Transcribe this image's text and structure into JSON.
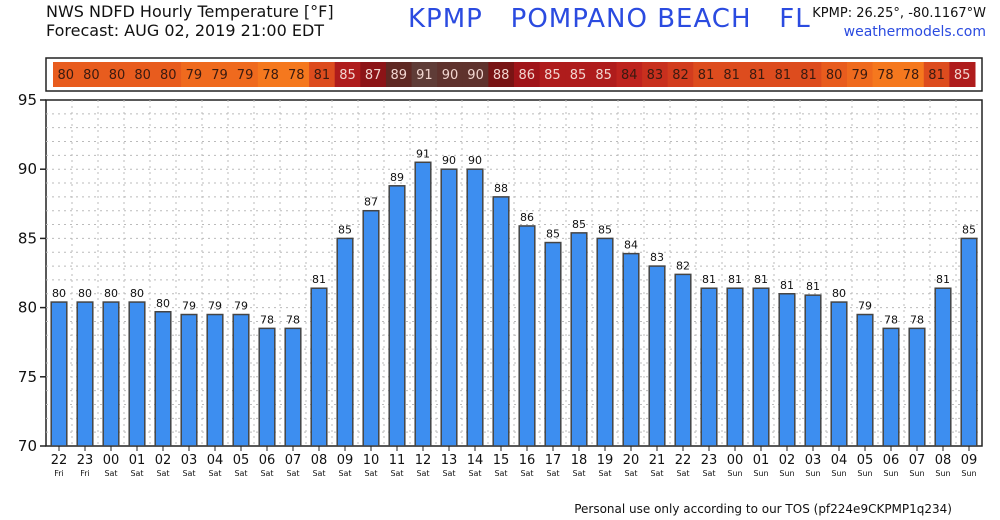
{
  "header": {
    "title_line1": "NWS NDFD Hourly Temperature [°F]",
    "title_line2": "Forecast: AUG 02, 2019 21:00 EDT",
    "station": "KPMP   POMPANO BEACH   FL",
    "coords": "KPMP: 26.25°, -80.1167°W",
    "site": "weathermodels.com"
  },
  "footer": {
    "tos": "Personal use only according to our TOS (pf224e9CKPMP1q234)"
  },
  "colors": {
    "bar_fill": "#3d8ef0",
    "bar_stroke": "#444444",
    "grid": "#bbbbbb"
  },
  "chart_data": {
    "type": "bar",
    "ylim": [
      70,
      95
    ],
    "yticks": [
      70,
      75,
      80,
      85,
      90,
      95
    ],
    "grid": true,
    "categories": [
      "22",
      "23",
      "00",
      "01",
      "02",
      "03",
      "04",
      "05",
      "06",
      "07",
      "08",
      "09",
      "10",
      "11",
      "12",
      "13",
      "14",
      "15",
      "16",
      "17",
      "18",
      "19",
      "20",
      "21",
      "22",
      "23",
      "00",
      "01",
      "02",
      "03",
      "04",
      "05",
      "06",
      "07",
      "08",
      "09"
    ],
    "days": [
      "Fri",
      "Fri",
      "Sat",
      "Sat",
      "Sat",
      "Sat",
      "Sat",
      "Sat",
      "Sat",
      "Sat",
      "Sat",
      "Sat",
      "Sat",
      "Sat",
      "Sat",
      "Sat",
      "Sat",
      "Sat",
      "Sat",
      "Sat",
      "Sat",
      "Sat",
      "Sat",
      "Sat",
      "Sat",
      "Sat",
      "Sun",
      "Sun",
      "Sun",
      "Sun",
      "Sun",
      "Sun",
      "Sun",
      "Sun",
      "Sun",
      "Sun"
    ],
    "values": [
      80.4,
      80.4,
      80.4,
      80.4,
      79.7,
      79.5,
      79.5,
      79.5,
      78.5,
      78.5,
      81.4,
      85.0,
      87.0,
      88.8,
      90.5,
      90.0,
      90.0,
      88.0,
      85.9,
      84.7,
      85.4,
      85.0,
      83.9,
      83.0,
      82.4,
      81.4,
      81.4,
      81.4,
      81.0,
      80.9,
      80.4,
      79.5,
      78.5,
      78.5,
      81.4,
      85.0
    ],
    "labels": [
      "80",
      "80",
      "80",
      "80",
      "80",
      "79",
      "79",
      "79",
      "78",
      "78",
      "81",
      "85",
      "87",
      "89",
      "91",
      "90",
      "90",
      "88",
      "86",
      "85",
      "85",
      "85",
      "84",
      "83",
      "82",
      "81",
      "81",
      "81",
      "81",
      "81",
      "80",
      "79",
      "78",
      "78",
      "81",
      "85"
    ]
  }
}
